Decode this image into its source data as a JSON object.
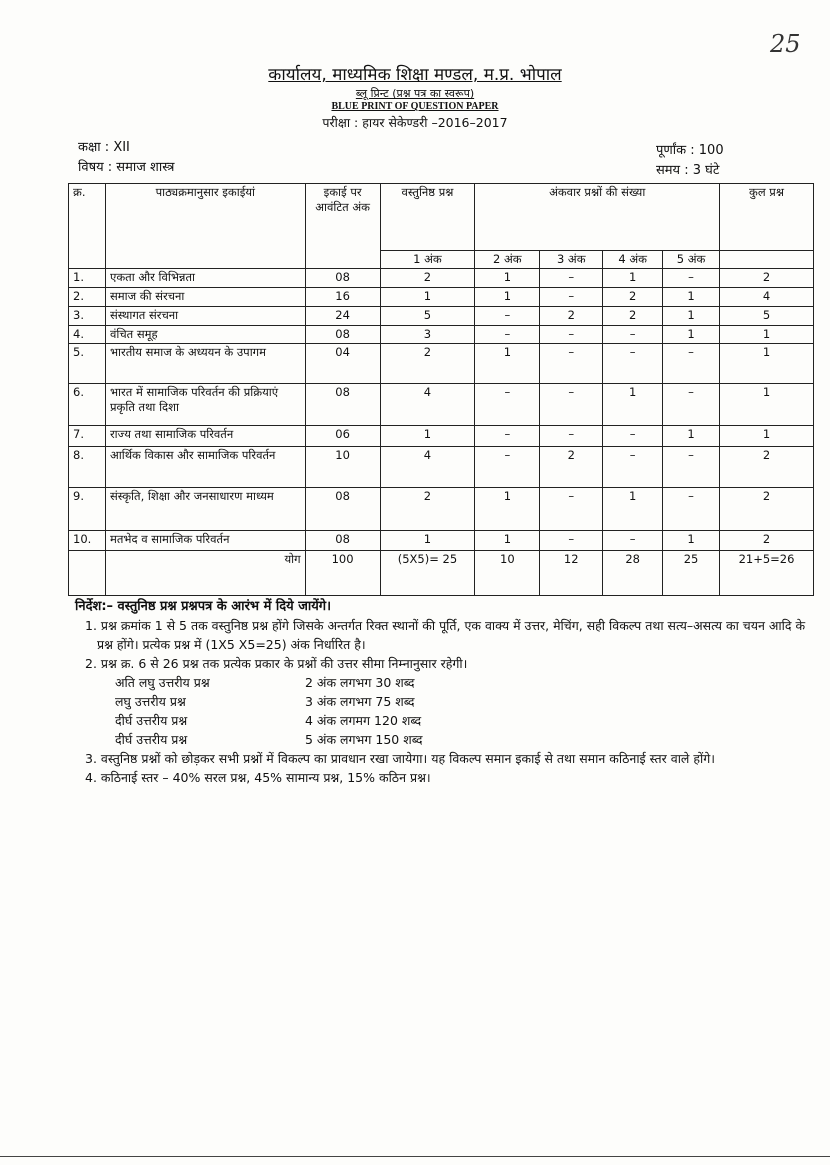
{
  "page_mark": "25",
  "header": {
    "office": "कार्यालय, माध्यमिक शिक्षा मण्डल, म.प्र. भोपाल",
    "subtitle_hi": "ब्लू प्रिन्ट (प्रश्न पत्र का स्वरूप)",
    "subtitle_en": "BLUE PRINT OF QUESTION PAPER",
    "exam": "परीक्षा : हायर सेकेण्डरी –2016–2017"
  },
  "meta": {
    "class": "कक्षा  : XII",
    "subject": "विषय : समाज शास्त्र",
    "max_marks": "पूर्णांक : 100",
    "time": "समय : 3 घंटे"
  },
  "table": {
    "headers": {
      "sno": "क्र.",
      "unit": "पाठ्यक्रमानुसार इकाईयां",
      "marks": "इकाई पर आवंटित अंक",
      "objective": "वस्तुनिष्ठ प्रश्न",
      "markwise": "अंकवार प्रश्नों की संख्या",
      "total": "कुल प्रश्न",
      "m1": "1 अंक",
      "m2": "2 अंक",
      "m3": "3 अंक",
      "m4": "4 अंक",
      "m5": "5 अंक"
    },
    "rows": [
      {
        "sno": "1.",
        "unit": "एकता और विभिन्नता",
        "marks": "08",
        "m1": "2",
        "m2": "1",
        "m3": "–",
        "m4": "1",
        "m5": "–",
        "total": "2"
      },
      {
        "sno": "2.",
        "unit": "समाज की संरचना",
        "marks": "16",
        "m1": "1",
        "m2": "1",
        "m3": "–",
        "m4": "2",
        "m5": "1",
        "total": "4"
      },
      {
        "sno": "3.",
        "unit": "संस्थागत संरचना",
        "marks": "24",
        "m1": "5",
        "m2": "–",
        "m3": "2",
        "m4": "2",
        "m5": "1",
        "total": "5"
      },
      {
        "sno": "4.",
        "unit": "वंचित समूह",
        "marks": "08",
        "m1": "3",
        "m2": "–",
        "m3": "–",
        "m4": "–",
        "m5": "1",
        "total": "1"
      },
      {
        "sno": "5.",
        "unit": "भारतीय समाज के अध्ययन के उपागम",
        "marks": "04",
        "m1": "2",
        "m2": "1",
        "m3": "–",
        "m4": "–",
        "m5": "–",
        "total": "1"
      },
      {
        "sno": "6.",
        "unit": "भारत में सामाजिक परिवर्तन की प्रक्रियाएं प्रकृति तथा दिशा",
        "marks": "08",
        "m1": "4",
        "m2": "–",
        "m3": "–",
        "m4": "1",
        "m5": "–",
        "total": "1"
      },
      {
        "sno": "7.",
        "unit": "राज्य तथा सामाजिक परिवर्तन",
        "marks": "06",
        "m1": "1",
        "m2": "–",
        "m3": "–",
        "m4": "–",
        "m5": "1",
        "total": "1"
      },
      {
        "sno": "8.",
        "unit": "आर्थिक विकास और सामाजिक परिवर्तन",
        "marks": "10",
        "m1": "4",
        "m2": "–",
        "m3": "2",
        "m4": "–",
        "m5": "–",
        "total": "2"
      },
      {
        "sno": "9.",
        "unit": "संस्कृति, शिक्षा और जनसाधारण माध्यम",
        "marks": "08",
        "m1": "2",
        "m2": "1",
        "m3": "–",
        "m4": "1",
        "m5": "–",
        "total": "2"
      },
      {
        "sno": "10.",
        "unit": "मतभेद व सामाजिक परिवर्तन",
        "marks": "08",
        "m1": "1",
        "m2": "1",
        "m3": "–",
        "m4": "–",
        "m5": "1",
        "total": "2"
      }
    ],
    "sum": {
      "label": "योग",
      "marks": "100",
      "m1": "(5X5)= 25",
      "m2": "10",
      "m3": "12",
      "m4": "28",
      "m5": "25",
      "total": "21+5=26"
    }
  },
  "notes": {
    "heading": "निर्देश:– वस्तुनिष्ठ प्रश्न प्रश्नपत्र के आरंभ में दिये जायेंगे।",
    "n1": "1. प्रश्न क्रमांक 1 से 5 तक वस्तुनिष्ठ प्रश्न होंगे जिसके अन्तर्गत रिक्त स्थानों की पूर्ति, एक वाक्य में उत्तर, मेचिंग, सही विकल्प तथा सत्य–असत्य का चयन आदि के प्रश्न होंगे। प्रत्येक प्रश्न में (1X5 X5=25) अंक निर्धारित है।",
    "n2": "2. प्रश्न क्र. 6 से 26 प्रश्न तक प्रत्येक प्रकार के प्रश्नों की उत्तर सीमा निम्नानुसार रहेगी।",
    "limits": [
      {
        "type": "अति लघु उत्तरीय प्रश्न",
        "limit": "2 अंक लगभग 30 शब्द"
      },
      {
        "type": "लघु उत्तरीय प्रश्न",
        "limit": "3 अंक  लगभग  75 शब्द"
      },
      {
        "type": "दीर्घ उत्तरीय प्रश्न",
        "limit": "4 अंक लगमग  120 शब्द"
      },
      {
        "type": "दीर्घ उत्तरीय प्रश्न",
        "limit": "5 अंक  लगभग  150 शब्द"
      }
    ],
    "n3": "3. वस्तुनिष्ठ प्रश्नों को छोड़कर सभी प्रश्नों में विकल्प का प्रावधान रखा जायेगा। यह विकल्प समान इकाई से तथा समान कठिनाई स्तर वाले होंगे।",
    "n4": "4. कठिनाई स्तर – 40% सरल प्रश्न, 45% सामान्य प्रश्न, 15% कठिन प्रश्न।"
  }
}
